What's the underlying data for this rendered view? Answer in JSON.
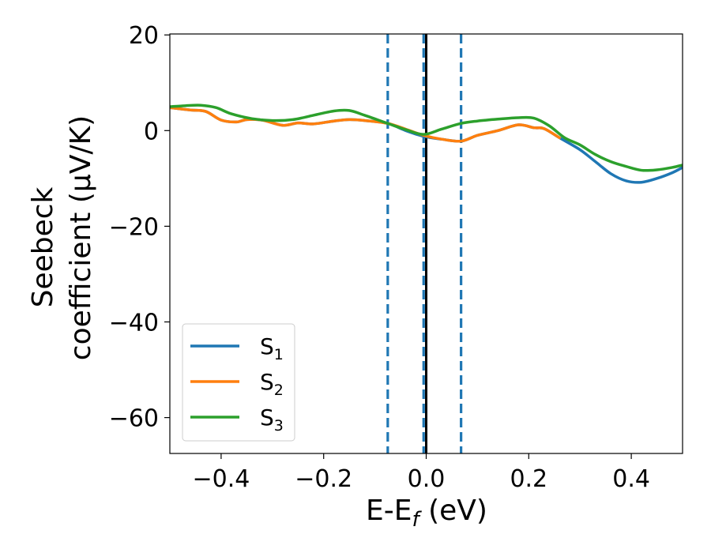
{
  "chart_data": {
    "type": "line",
    "xlabel": {
      "main": "E-E",
      "sub": "f",
      "unit": " (eV)"
    },
    "ylabel": {
      "line1": "Seebeck",
      "line2": "coefficient  (μV/K)"
    },
    "xlim": [
      -0.5,
      0.5
    ],
    "ylim": [
      -67.5,
      20.2
    ],
    "xticks": [
      -0.4,
      -0.2,
      0.0,
      0.2,
      0.4
    ],
    "xtick_labels": [
      "−0.4",
      "−0.2",
      "0.0",
      "0.2",
      "0.4"
    ],
    "yticks": [
      20,
      0,
      -20,
      -40,
      -60
    ],
    "ytick_labels": [
      "20",
      "0",
      "−20",
      "−40",
      "−60"
    ],
    "legend_position": "lower-left",
    "vertical_lines": [
      {
        "x": -0.075,
        "style": "dashed",
        "color": "#1f77b4"
      },
      {
        "x": -0.005,
        "style": "dashed",
        "color": "#1f77b4"
      },
      {
        "x": 0.068,
        "style": "dashed",
        "color": "#1f77b4"
      },
      {
        "x": 0.0,
        "style": "solid",
        "color": "#000000"
      }
    ],
    "series": [
      {
        "name": "S",
        "sub": "1",
        "color": "#1f77b4",
        "x": [
          -0.5,
          -0.46,
          -0.43,
          -0.4,
          -0.37,
          -0.35,
          -0.32,
          -0.28,
          -0.25,
          -0.22,
          -0.18,
          -0.15,
          -0.12,
          -0.075,
          -0.04,
          -0.005,
          0.03,
          0.068,
          0.1,
          0.14,
          0.18,
          0.21,
          0.23,
          0.26,
          0.3,
          0.33,
          0.36,
          0.39,
          0.42,
          0.45,
          0.48,
          0.5
        ],
        "values": [
          4.8,
          4.3,
          4.0,
          2.2,
          1.8,
          2.3,
          2.2,
          1.1,
          1.6,
          1.4,
          2.0,
          2.3,
          2.1,
          1.5,
          0.0,
          -1.2,
          -1.8,
          -2.2,
          -1.0,
          0.0,
          1.2,
          0.6,
          0.4,
          -1.5,
          -4.0,
          -6.5,
          -9.0,
          -10.5,
          -10.8,
          -10.0,
          -8.8,
          -7.7
        ]
      },
      {
        "name": "S",
        "sub": "2",
        "color": "#ff7f0e",
        "x": [
          -0.5,
          -0.46,
          -0.43,
          -0.4,
          -0.37,
          -0.35,
          -0.32,
          -0.28,
          -0.25,
          -0.22,
          -0.18,
          -0.15,
          -0.12,
          -0.075,
          -0.04,
          -0.005,
          0.03,
          0.068,
          0.1,
          0.14,
          0.18,
          0.21,
          0.23,
          0.26
        ],
        "values": [
          4.8,
          4.3,
          4.0,
          2.2,
          1.8,
          2.3,
          2.2,
          1.1,
          1.6,
          1.4,
          2.0,
          2.3,
          2.1,
          1.5,
          0.3,
          -1.0,
          -1.8,
          -2.2,
          -1.0,
          0.0,
          1.2,
          0.6,
          0.4,
          -1.5
        ]
      },
      {
        "name": "S",
        "sub": "3",
        "color": "#2ca02c",
        "x": [
          -0.5,
          -0.47,
          -0.44,
          -0.41,
          -0.38,
          -0.34,
          -0.3,
          -0.26,
          -0.22,
          -0.18,
          -0.15,
          -0.12,
          -0.075,
          -0.04,
          -0.005,
          0.03,
          0.068,
          0.1,
          0.14,
          0.18,
          0.21,
          0.24,
          0.27,
          0.3,
          0.33,
          0.36,
          0.39,
          0.42,
          0.45,
          0.48,
          0.5
        ],
        "values": [
          5.0,
          5.2,
          5.3,
          4.8,
          3.5,
          2.5,
          2.1,
          2.3,
          3.2,
          4.1,
          4.2,
          3.2,
          1.5,
          0.2,
          -0.8,
          0.3,
          1.5,
          2.0,
          2.4,
          2.7,
          2.6,
          1.0,
          -1.5,
          -3.0,
          -5.0,
          -6.5,
          -7.5,
          -8.3,
          -8.2,
          -7.7,
          -7.2
        ]
      }
    ]
  }
}
